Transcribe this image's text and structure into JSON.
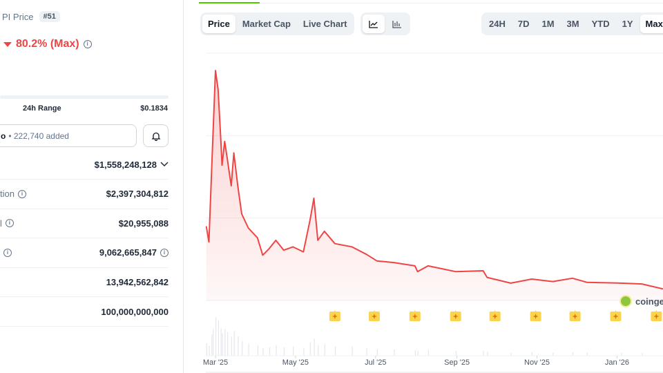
{
  "coin": {
    "title": "PI Price",
    "rank": "#51",
    "change": "80.2% (Max)",
    "direction": "down"
  },
  "range": {
    "label": "24h Range",
    "high": "$0.1834"
  },
  "portfolio": {
    "label_fragment": "o",
    "added": "• 222,740 added"
  },
  "stats": [
    {
      "label": "",
      "value": "$1,558,248,128",
      "chevron": true,
      "info_value": false,
      "info_label": false
    },
    {
      "label": "tion",
      "value": "$2,397,304,812",
      "info_label": true,
      "info_value": false
    },
    {
      "label": "l",
      "value": "$20,955,088",
      "info_label": true,
      "info_value": false
    },
    {
      "label": "",
      "value": "9,062,665,847",
      "info_label": true,
      "info_value": true
    },
    {
      "label": "",
      "value": "13,942,562,842",
      "info_label": false,
      "info_value": false
    },
    {
      "label": "",
      "value": "100,000,000,000",
      "info_label": false,
      "info_value": false
    }
  ],
  "chart_tabs": [
    "Price",
    "Market Cap",
    "Live Chart"
  ],
  "chart_tab_active": "Price",
  "chart_types": [
    "line-chart-icon",
    "candlestick-chart-icon"
  ],
  "ranges": [
    "24H",
    "7D",
    "1M",
    "3M",
    "YTD",
    "1Y",
    "Max"
  ],
  "range_active": "Max",
  "watermark": "coingecko",
  "colors": {
    "line": "#ef4444",
    "accent": "#4bcc00",
    "event": "#fcd34d"
  },
  "chart_data": {
    "type": "area",
    "title": "",
    "xlabel": "",
    "ylabel": "",
    "ylim": [
      0,
      3
    ],
    "grid": true,
    "x_ticks": [
      "Mar '25",
      "May '25",
      "Jul '25",
      "Sep '25",
      "Nov '25",
      "Jan '26"
    ],
    "x_tick_dates": [
      "2025-03-01",
      "2025-05-01",
      "2025-07-01",
      "2025-09-01",
      "2025-11-01",
      "2026-01-01"
    ],
    "series": [
      {
        "points": [
          [
            "2025-02-22",
            0.9
          ],
          [
            "2025-02-24",
            0.71
          ],
          [
            "2025-02-26",
            1.55
          ],
          [
            "2025-02-27",
            1.97
          ],
          [
            "2025-03-01",
            2.79
          ],
          [
            "2025-03-03",
            2.56
          ],
          [
            "2025-03-05",
            1.97
          ],
          [
            "2025-03-06",
            1.64
          ],
          [
            "2025-03-08",
            1.93
          ],
          [
            "2025-03-10",
            1.72
          ],
          [
            "2025-03-13",
            1.39
          ],
          [
            "2025-03-15",
            1.79
          ],
          [
            "2025-03-18",
            1.39
          ],
          [
            "2025-03-21",
            1.05
          ],
          [
            "2025-03-26",
            0.88
          ],
          [
            "2025-04-02",
            0.76
          ],
          [
            "2025-04-06",
            0.55
          ],
          [
            "2025-04-11",
            0.63
          ],
          [
            "2025-04-16",
            0.73
          ],
          [
            "2025-04-22",
            0.61
          ],
          [
            "2025-04-29",
            0.65
          ],
          [
            "2025-05-07",
            0.59
          ],
          [
            "2025-05-12",
            0.97
          ],
          [
            "2025-05-15",
            1.24
          ],
          [
            "2025-05-18",
            0.73
          ],
          [
            "2025-05-23",
            0.84
          ],
          [
            "2025-05-31",
            0.69
          ],
          [
            "2025-06-13",
            0.65
          ],
          [
            "2025-06-24",
            0.56
          ],
          [
            "2025-07-02",
            0.48
          ],
          [
            "2025-07-15",
            0.46
          ],
          [
            "2025-07-31",
            0.42
          ],
          [
            "2025-08-02",
            0.35
          ],
          [
            "2025-08-10",
            0.42
          ],
          [
            "2025-08-31",
            0.35
          ],
          [
            "2025-09-21",
            0.36
          ],
          [
            "2025-09-24",
            0.28
          ],
          [
            "2025-10-12",
            0.21
          ],
          [
            "2025-10-28",
            0.26
          ],
          [
            "2025-11-13",
            0.23
          ],
          [
            "2025-11-28",
            0.27
          ],
          [
            "2025-12-09",
            0.22
          ],
          [
            "2026-01-04",
            0.21
          ],
          [
            "2026-01-20",
            0.2
          ],
          [
            "2026-02-05",
            0.14
          ]
        ]
      }
    ],
    "events": [
      "2025-05-31",
      "2025-06-30",
      "2025-07-31",
      "2025-08-31",
      "2025-09-30",
      "2025-10-31",
      "2025-11-30",
      "2025-12-31",
      "2026-01-31"
    ]
  }
}
